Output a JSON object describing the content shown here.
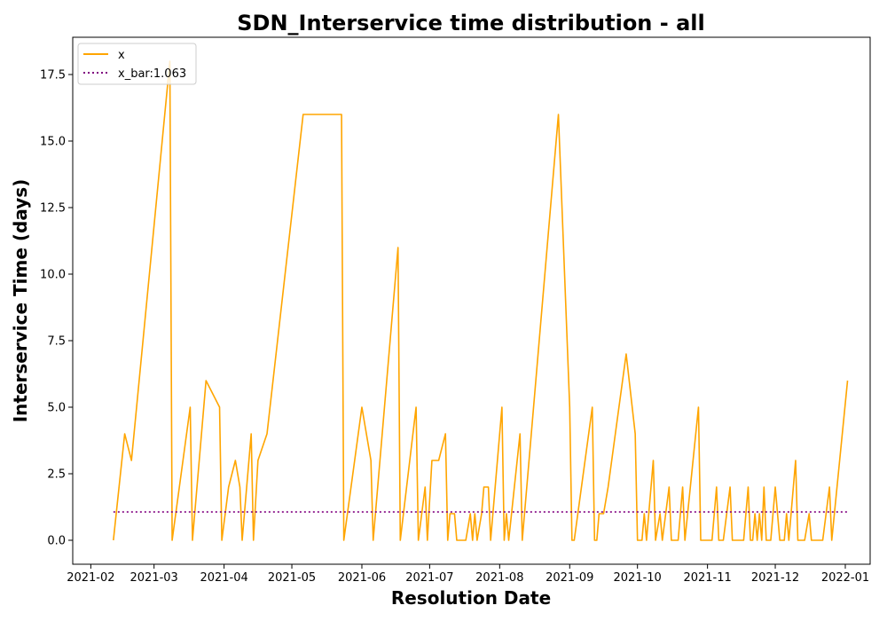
{
  "chart_data": {
    "type": "line",
    "title": "SDN_Interservice time distribution - all",
    "xlabel": "Resolution Date",
    "ylabel": "Interservice Time (days)",
    "xlim": [
      "2021-01-24",
      "2022-01-12"
    ],
    "ylim": [
      -0.9,
      18.9
    ],
    "x_ticks": [
      "2021-02",
      "2021-03",
      "2021-04",
      "2021-05",
      "2021-06",
      "2021-07",
      "2021-08",
      "2021-09",
      "2021-10",
      "2021-11",
      "2021-12",
      "2022-01"
    ],
    "y_ticks": [
      "0.0",
      "2.5",
      "5.0",
      "7.5",
      "10.0",
      "12.5",
      "15.0",
      "17.5"
    ],
    "legend_position": "top-left",
    "grid": false,
    "series": [
      {
        "name": "x",
        "color": "#ffa500",
        "style": "solid",
        "points": [
          [
            "2021-02-11",
            0
          ],
          [
            "2021-02-16",
            4
          ],
          [
            "2021-02-19",
            3
          ],
          [
            "2021-03-08",
            18
          ],
          [
            "2021-03-09",
            0
          ],
          [
            "2021-03-17",
            5
          ],
          [
            "2021-03-18",
            0
          ],
          [
            "2021-03-24",
            6
          ],
          [
            "2021-03-30",
            5
          ],
          [
            "2021-03-31",
            0
          ],
          [
            "2021-04-03",
            2
          ],
          [
            "2021-04-06",
            3
          ],
          [
            "2021-04-08",
            2
          ],
          [
            "2021-04-09",
            0
          ],
          [
            "2021-04-13",
            4
          ],
          [
            "2021-04-14",
            0
          ],
          [
            "2021-04-16",
            3
          ],
          [
            "2021-04-20",
            4
          ],
          [
            "2021-05-06",
            16
          ],
          [
            "2021-05-23",
            16
          ],
          [
            "2021-05-24",
            0
          ],
          [
            "2021-06-01",
            5
          ],
          [
            "2021-06-05",
            3
          ],
          [
            "2021-06-06",
            0
          ],
          [
            "2021-06-17",
            11
          ],
          [
            "2021-06-18",
            0
          ],
          [
            "2021-06-25",
            5
          ],
          [
            "2021-06-26",
            0
          ],
          [
            "2021-06-29",
            2
          ],
          [
            "2021-06-30",
            0
          ],
          [
            "2021-07-02",
            3
          ],
          [
            "2021-07-05",
            3
          ],
          [
            "2021-07-08",
            4
          ],
          [
            "2021-07-09",
            0
          ],
          [
            "2021-07-10",
            1
          ],
          [
            "2021-07-12",
            1
          ],
          [
            "2021-07-13",
            0
          ],
          [
            "2021-07-17",
            0
          ],
          [
            "2021-07-19",
            1
          ],
          [
            "2021-07-20",
            0
          ],
          [
            "2021-07-21",
            1
          ],
          [
            "2021-07-22",
            0
          ],
          [
            "2021-07-24",
            1
          ],
          [
            "2021-07-25",
            2
          ],
          [
            "2021-07-27",
            2
          ],
          [
            "2021-07-28",
            0
          ],
          [
            "2021-08-02",
            5
          ],
          [
            "2021-08-03",
            0
          ],
          [
            "2021-08-04",
            1
          ],
          [
            "2021-08-05",
            0
          ],
          [
            "2021-08-10",
            4
          ],
          [
            "2021-08-11",
            0
          ],
          [
            "2021-08-27",
            16
          ],
          [
            "2021-09-01",
            5
          ],
          [
            "2021-09-02",
            0
          ],
          [
            "2021-09-03",
            0
          ],
          [
            "2021-09-11",
            5
          ],
          [
            "2021-09-12",
            0
          ],
          [
            "2021-09-13",
            0
          ],
          [
            "2021-09-14",
            1
          ],
          [
            "2021-09-16",
            1
          ],
          [
            "2021-09-18",
            2
          ],
          [
            "2021-09-26",
            7
          ],
          [
            "2021-09-30",
            4
          ],
          [
            "2021-10-01",
            0
          ],
          [
            "2021-10-03",
            0
          ],
          [
            "2021-10-04",
            1
          ],
          [
            "2021-10-05",
            0
          ],
          [
            "2021-10-08",
            3
          ],
          [
            "2021-10-09",
            0
          ],
          [
            "2021-10-11",
            1
          ],
          [
            "2021-10-12",
            0
          ],
          [
            "2021-10-15",
            2
          ],
          [
            "2021-10-16",
            0
          ],
          [
            "2021-10-19",
            0
          ],
          [
            "2021-10-21",
            2
          ],
          [
            "2021-10-22",
            0
          ],
          [
            "2021-10-28",
            5
          ],
          [
            "2021-10-29",
            0
          ],
          [
            "2021-10-30",
            0
          ],
          [
            "2021-10-31",
            0
          ],
          [
            "2021-11-01",
            0
          ],
          [
            "2021-11-03",
            0
          ],
          [
            "2021-11-05",
            2
          ],
          [
            "2021-11-06",
            0
          ],
          [
            "2021-11-08",
            0
          ],
          [
            "2021-11-11",
            2
          ],
          [
            "2021-11-12",
            0
          ],
          [
            "2021-11-17",
            0
          ],
          [
            "2021-11-19",
            2
          ],
          [
            "2021-11-20",
            0
          ],
          [
            "2021-11-21",
            0
          ],
          [
            "2021-11-22",
            1
          ],
          [
            "2021-11-23",
            0
          ],
          [
            "2021-11-24",
            1
          ],
          [
            "2021-11-25",
            0
          ],
          [
            "2021-11-26",
            2
          ],
          [
            "2021-11-27",
            0
          ],
          [
            "2021-11-29",
            0
          ],
          [
            "2021-12-01",
            2
          ],
          [
            "2021-12-02",
            1
          ],
          [
            "2021-12-03",
            0
          ],
          [
            "2021-12-05",
            0
          ],
          [
            "2021-12-06",
            1
          ],
          [
            "2021-12-07",
            0
          ],
          [
            "2021-12-10",
            3
          ],
          [
            "2021-12-11",
            0
          ],
          [
            "2021-12-14",
            0
          ],
          [
            "2021-12-16",
            1
          ],
          [
            "2021-12-17",
            0
          ],
          [
            "2021-12-22",
            0
          ],
          [
            "2021-12-25",
            2
          ],
          [
            "2021-12-26",
            0
          ],
          [
            "2022-01-02",
            6
          ]
        ]
      },
      {
        "name": "x_bar:1.063",
        "color": "#800080",
        "style": "dotted",
        "points": [
          [
            "2021-02-11",
            1.063
          ],
          [
            "2022-01-02",
            1.063
          ]
        ]
      }
    ]
  }
}
